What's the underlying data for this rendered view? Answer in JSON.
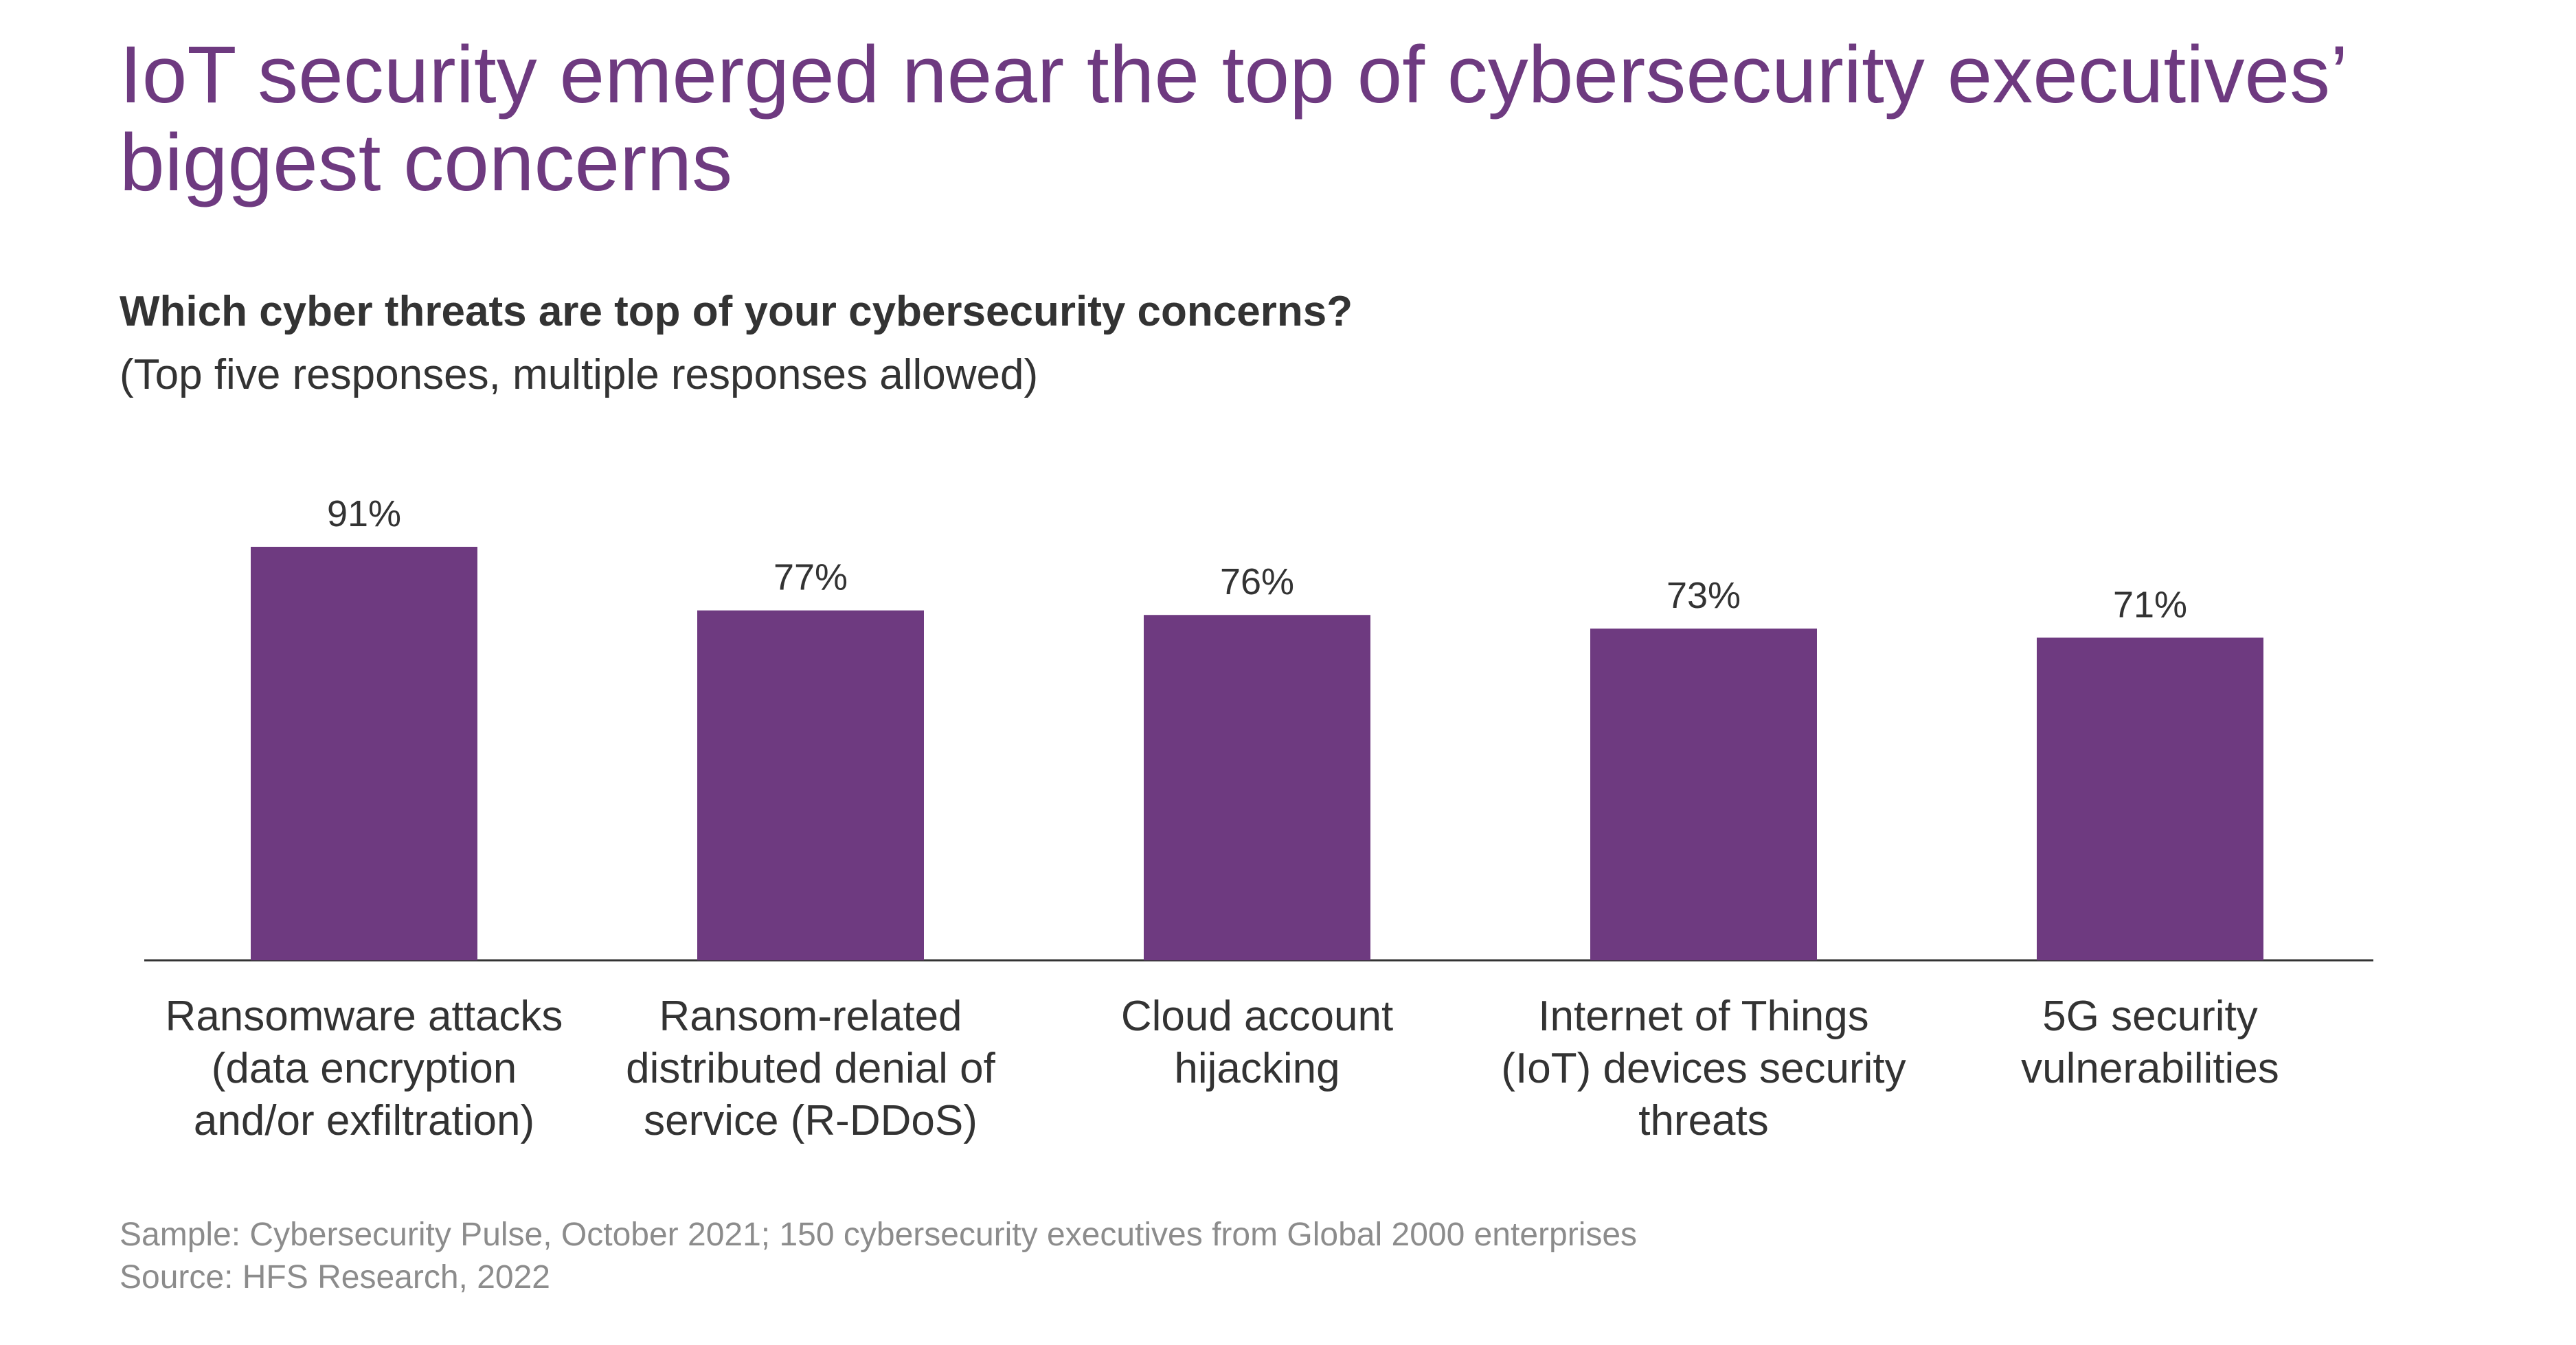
{
  "title": "IoT security emerged near the top of cybersecurity executives’ biggest concerns",
  "subtitle": "Which cyber threats are top of your cybersecurity concerns?",
  "note": "(Top five responses, multiple responses allowed)",
  "footer": {
    "sample": "Sample: Cybersecurity Pulse, October 2021; 150 cybersecurity executives from Global 2000 enterprises",
    "source": "Source: HFS Research, 2022"
  },
  "colors": {
    "title": "#6e3a80",
    "bar": "#6e3a80",
    "text": "#333333",
    "footer": "#8c8c8c",
    "axis": "#333333"
  },
  "chart_data": {
    "type": "bar",
    "categories": [
      [
        "Ransomware attacks",
        "(data encryption",
        "and/or exfiltration)"
      ],
      [
        "Ransom-related",
        "distributed denial of",
        "service (R-DDoS)"
      ],
      [
        "Cloud account",
        "hijacking"
      ],
      [
        "Internet of Things",
        "(IoT) devices security",
        "threats"
      ],
      [
        "5G security",
        "vulnerabilities"
      ]
    ],
    "values": [
      91,
      77,
      76,
      73,
      71
    ],
    "value_labels": [
      "91%",
      "77%",
      "76%",
      "73%",
      "71%"
    ],
    "ylim": [
      0,
      100
    ],
    "grid": false,
    "legend": "none"
  }
}
